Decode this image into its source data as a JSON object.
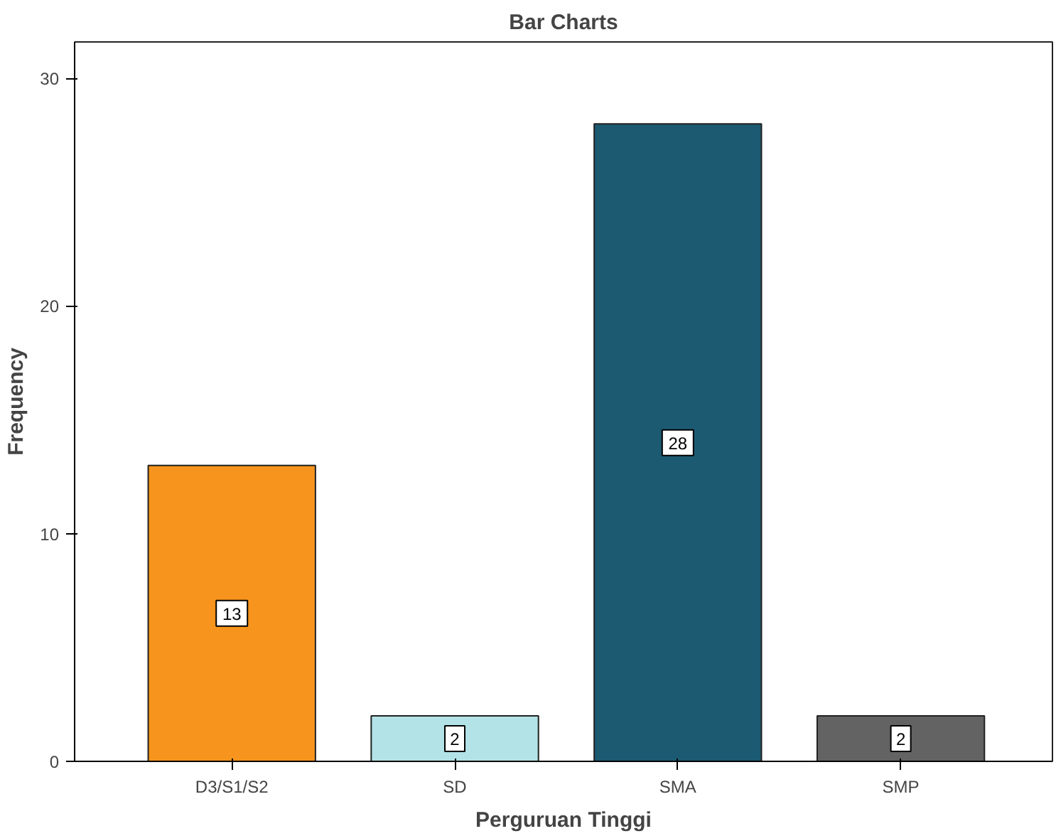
{
  "chart_data": {
    "type": "bar",
    "title": "Bar Charts",
    "xlabel": "Perguruan Tinggi",
    "ylabel": "Frequency",
    "categories": [
      "D3/S1/S2",
      "SD",
      "SMA",
      "SMP"
    ],
    "values": [
      13,
      2,
      28,
      2
    ],
    "colors": [
      "#f7941d",
      "#b3e3e6",
      "#1c5a72",
      "#636363"
    ],
    "ylim": [
      0,
      31.6
    ],
    "yticks": [
      0,
      10,
      20,
      30
    ],
    "grid": false,
    "data_labels": true
  }
}
